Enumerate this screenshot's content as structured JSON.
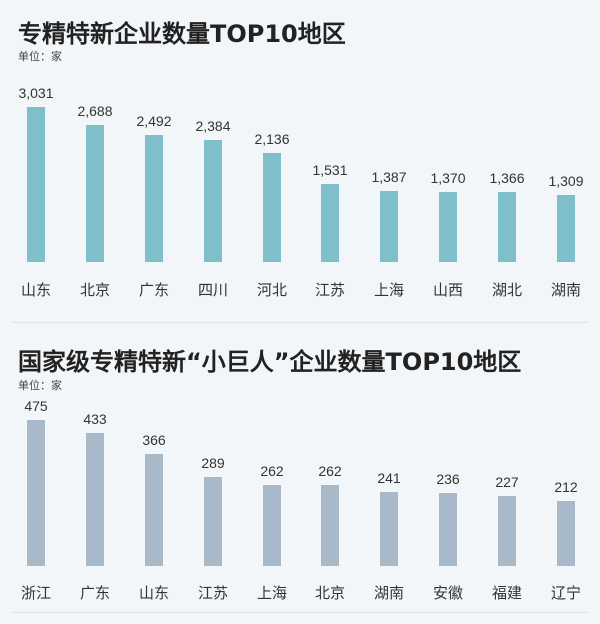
{
  "chart_data": [
    {
      "type": "bar",
      "title": "专精特新企业数量TOP10地区",
      "unit_label": "单位：家",
      "categories": [
        "山东",
        "北京",
        "广东",
        "四川",
        "河北",
        "江苏",
        "上海",
        "山西",
        "湖北",
        "湖南"
      ],
      "values": [
        3031,
        2688,
        2492,
        2384,
        2136,
        1531,
        1387,
        1370,
        1366,
        1309
      ],
      "value_labels": [
        "3,031",
        "2,688",
        "2,492",
        "2,384",
        "2,136",
        "1,531",
        "1,387",
        "1,370",
        "1,366",
        "1,309"
      ],
      "color": "#7fbfcc",
      "xlabel": "",
      "ylabel": "",
      "grid": false,
      "legend": null
    },
    {
      "type": "bar",
      "title": "国家级专精特新“小巨人”企业数量TOP10地区",
      "unit_label": "单位：家",
      "categories": [
        "浙江",
        "广东",
        "山东",
        "江苏",
        "上海",
        "北京",
        "湖南",
        "安徽",
        "福建",
        "辽宁"
      ],
      "values": [
        475,
        433,
        366,
        289,
        262,
        262,
        241,
        236,
        227,
        212
      ],
      "value_labels": [
        "475",
        "433",
        "366",
        "289",
        "262",
        "262",
        "241",
        "236",
        "227",
        "212"
      ],
      "color": "#a7b8c9",
      "xlabel": "",
      "ylabel": "",
      "grid": false,
      "legend": null
    }
  ]
}
